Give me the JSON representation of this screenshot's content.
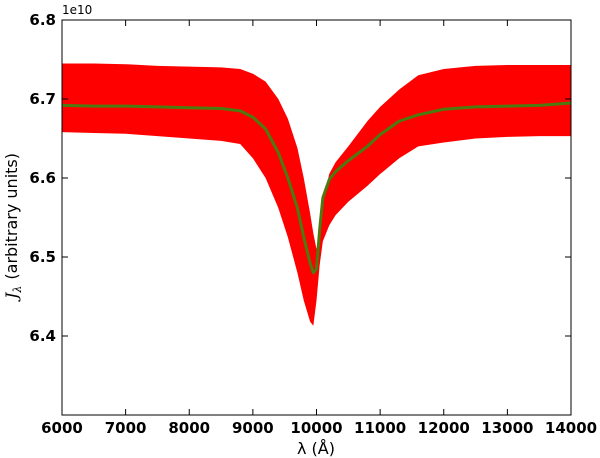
{
  "chart_data": {
    "type": "area",
    "xlabel": "λ (Å)",
    "ylabel": "J_λ (arbitrary units)",
    "ylabel_symbol": "J",
    "ylabel_subscript": "λ",
    "ylabel_text": "(arbitrary units)",
    "y_offset_label": "1e10",
    "xlim": [
      6000,
      14000
    ],
    "ylim": [
      6.3,
      6.8
    ],
    "x_ticks": [
      6000,
      7000,
      8000,
      9000,
      10000,
      11000,
      12000,
      13000,
      14000
    ],
    "y_ticks": [
      6.4,
      6.5,
      6.6,
      6.7,
      6.8
    ],
    "grid": false,
    "band_color": "#ff0000",
    "line_color": "#4d7a0f",
    "series": [
      {
        "kind": "band",
        "x": [
          6000,
          6500,
          7000,
          7500,
          8000,
          8500,
          8800,
          9000,
          9200,
          9400,
          9550,
          9700,
          9800,
          9900,
          9950,
          10000,
          10050,
          10100,
          10200,
          10300,
          10500,
          10800,
          11000,
          11300,
          11600,
          12000,
          12500,
          13000,
          13500,
          14000
        ],
        "upper": [
          6.745,
          6.745,
          6.744,
          6.742,
          6.741,
          6.74,
          6.738,
          6.732,
          6.722,
          6.7,
          6.675,
          6.638,
          6.6,
          6.555,
          6.53,
          6.51,
          6.53,
          6.57,
          6.605,
          6.62,
          6.64,
          6.672,
          6.69,
          6.712,
          6.73,
          6.738,
          6.742,
          6.743,
          6.743,
          6.743
        ],
        "lower": [
          6.658,
          6.657,
          6.656,
          6.653,
          6.65,
          6.647,
          6.643,
          6.625,
          6.6,
          6.562,
          6.525,
          6.48,
          6.445,
          6.418,
          6.413,
          6.445,
          6.49,
          6.52,
          6.54,
          6.553,
          6.57,
          6.59,
          6.605,
          6.625,
          6.64,
          6.645,
          6.65,
          6.652,
          6.653,
          6.653
        ]
      },
      {
        "kind": "line",
        "x": [
          6000,
          6500,
          7000,
          7500,
          8000,
          8500,
          8800,
          9000,
          9200,
          9400,
          9550,
          9700,
          9800,
          9900,
          9950,
          10000,
          10050,
          10100,
          10200,
          10300,
          10500,
          10800,
          11000,
          11300,
          11600,
          12000,
          12500,
          13000,
          13500,
          14000
        ],
        "y": [
          6.692,
          6.691,
          6.691,
          6.69,
          6.689,
          6.688,
          6.685,
          6.677,
          6.662,
          6.632,
          6.6,
          6.562,
          6.525,
          6.492,
          6.48,
          6.485,
          6.535,
          6.575,
          6.598,
          6.608,
          6.622,
          6.64,
          6.655,
          6.672,
          6.68,
          6.687,
          6.69,
          6.691,
          6.692,
          6.695
        ]
      }
    ]
  }
}
